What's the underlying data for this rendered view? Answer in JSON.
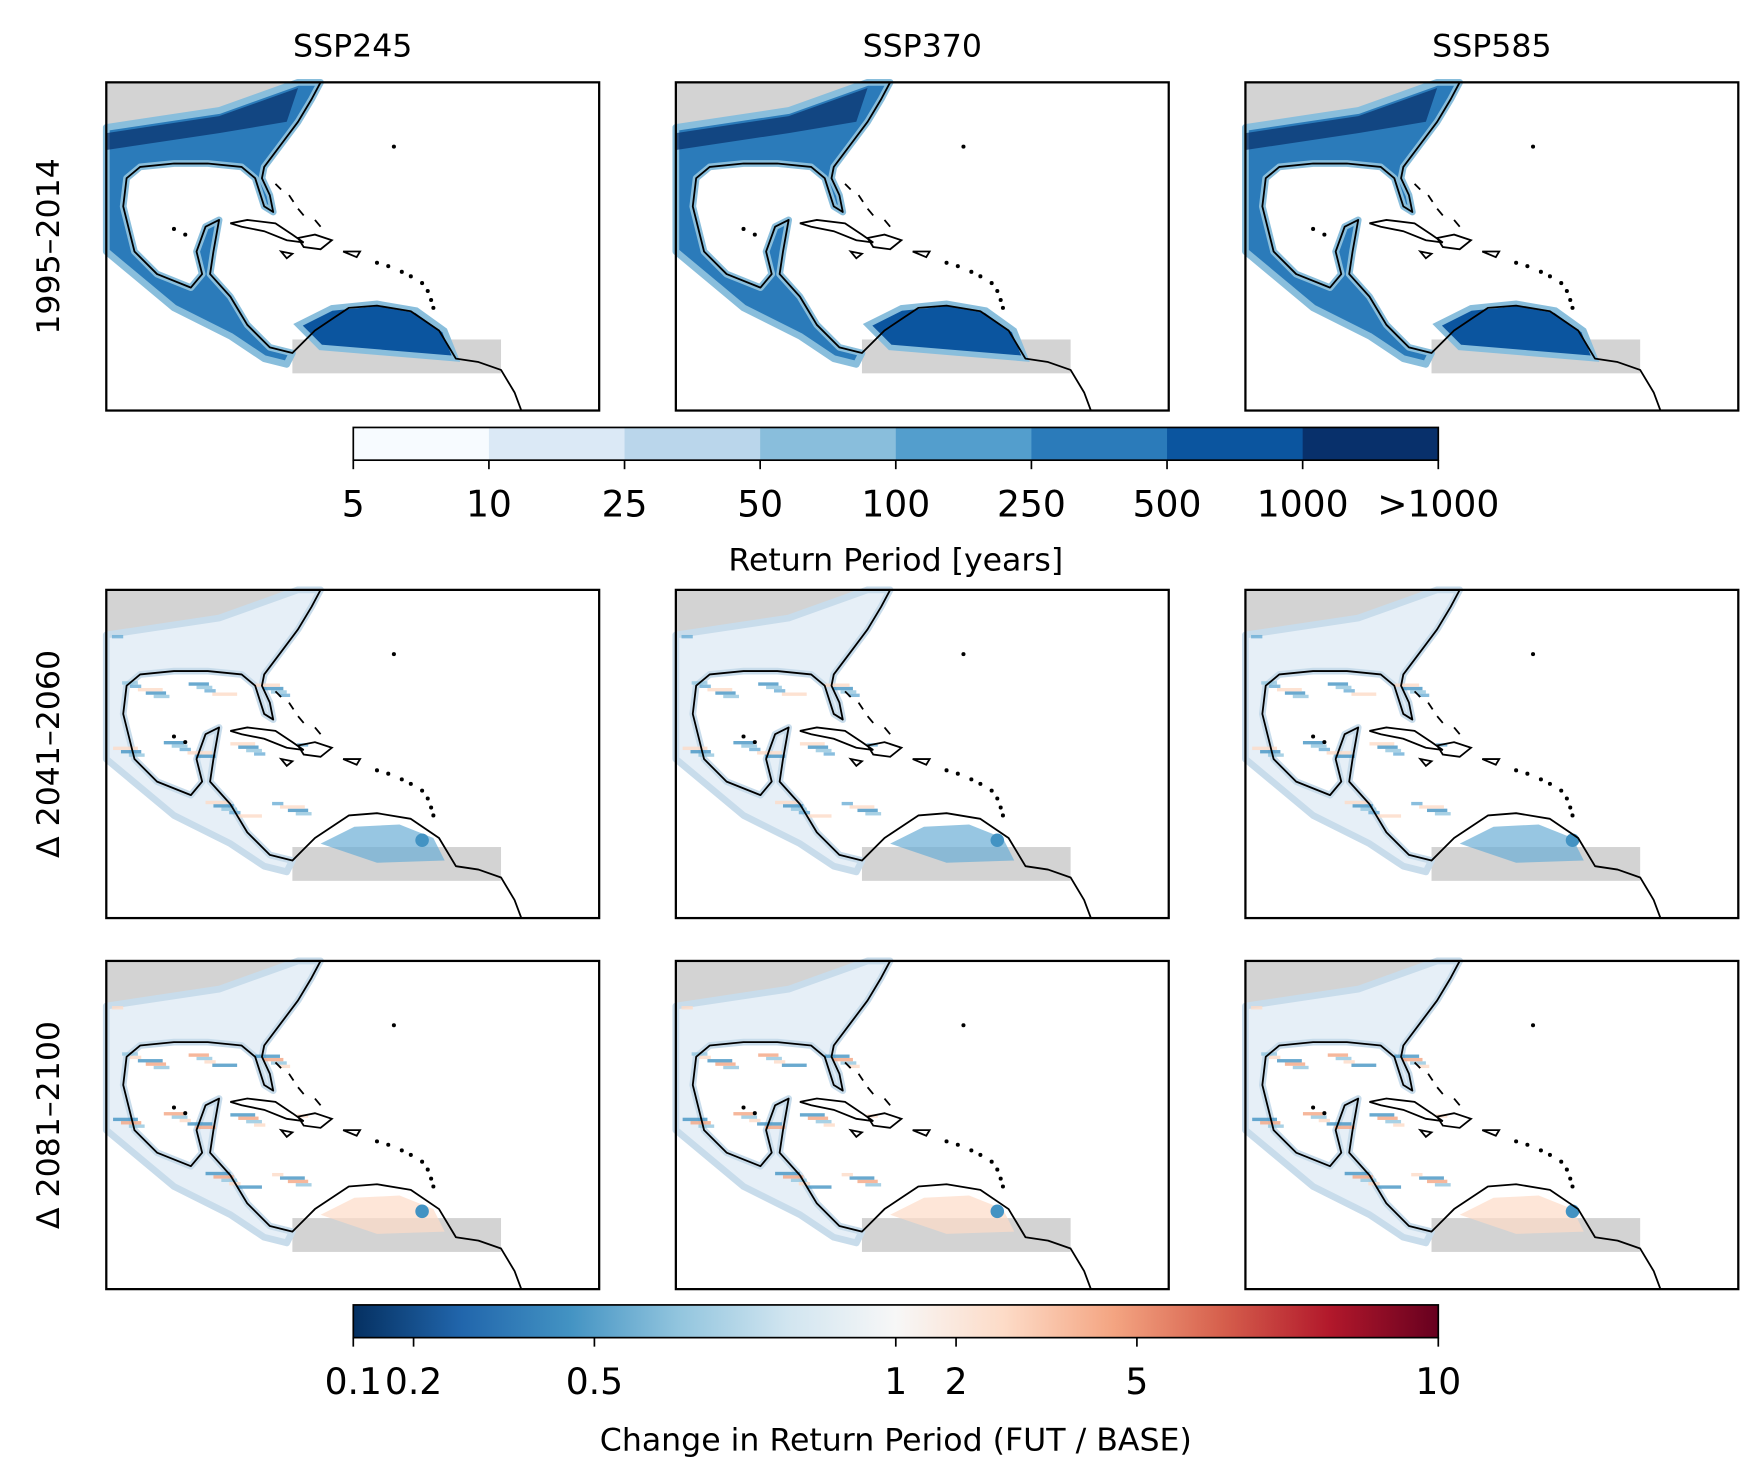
{
  "columns": [
    "SSP245",
    "SSP370",
    "SSP585"
  ],
  "rows": [
    "1995–2014",
    "Δ 2041–2060",
    "Δ 2081–2100"
  ],
  "colorbar_return": {
    "label": "Return Period [years]",
    "ticks": [
      5,
      10,
      25,
      50,
      100,
      250,
      500,
      1000
    ],
    "extend_label": ">1000",
    "colors": [
      "#f7fbff",
      "#dbe9f6",
      "#bad6eb",
      "#89bedc",
      "#539ecd",
      "#2b7bba",
      "#0b559f",
      "#08306b"
    ]
  },
  "colorbar_change": {
    "label": "Change in Return Period (FUT / BASE)",
    "lim": [
      0.1,
      10
    ],
    "center": 1,
    "ticks": [
      0.1,
      0.2,
      0.5,
      1,
      2,
      5,
      10
    ],
    "colors": [
      "#053061",
      "#2166ac",
      "#4393c3",
      "#92c5de",
      "#d1e5f0",
      "#f7f7f7",
      "#fddbc7",
      "#f4a582",
      "#d6604d",
      "#b2182b",
      "#67001f"
    ]
  }
}
